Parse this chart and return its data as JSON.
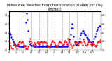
{
  "title": "Milwaukee Weather Evapotranspiration vs Rain per Day (Inches)",
  "title_fontsize": 3.5,
  "background_color": "#ffffff",
  "grid_color": "#888888",
  "et_color": "#0000ff",
  "rain_color": "#ff0000",
  "ylim": [
    0,
    0.45
  ],
  "n_points": 110,
  "et_values": [
    0.22,
    0.2,
    0.18,
    0.15,
    0.12,
    0.1,
    0.08,
    0.07,
    0.06,
    0.05,
    0.05,
    0.05,
    0.04,
    0.04,
    0.04,
    0.04,
    0.04,
    0.04,
    0.04,
    0.05,
    0.32,
    0.42,
    0.35,
    0.22,
    0.1,
    0.07,
    0.06,
    0.05,
    0.05,
    0.05,
    0.04,
    0.04,
    0.04,
    0.04,
    0.04,
    0.04,
    0.04,
    0.04,
    0.04,
    0.04,
    0.04,
    0.04,
    0.04,
    0.04,
    0.04,
    0.04,
    0.04,
    0.04,
    0.04,
    0.04,
    0.04,
    0.04,
    0.04,
    0.04,
    0.04,
    0.04,
    0.04,
    0.04,
    0.04,
    0.04,
    0.04,
    0.04,
    0.04,
    0.04,
    0.04,
    0.04,
    0.04,
    0.04,
    0.04,
    0.04,
    0.05,
    0.08,
    0.12,
    0.18,
    0.25,
    0.3,
    0.25,
    0.16,
    0.1,
    0.07,
    0.06,
    0.07,
    0.08,
    0.1,
    0.13,
    0.17,
    0.2,
    0.22,
    0.22,
    0.2,
    0.18,
    0.17,
    0.15,
    0.14,
    0.12,
    0.11,
    0.1,
    0.09,
    0.08,
    0.07,
    0.1,
    0.13,
    0.16,
    0.19,
    0.22,
    0.24,
    0.26,
    0.28,
    0.28,
    0.27
  ],
  "rain_values": [
    0.05,
    0.08,
    0.05,
    0.03,
    0.02,
    0.06,
    0.08,
    0.06,
    0.04,
    0.02,
    0.05,
    0.07,
    0.09,
    0.1,
    0.08,
    0.09,
    0.1,
    0.08,
    0.06,
    0.04,
    0.02,
    0.02,
    0.02,
    0.04,
    0.1,
    0.13,
    0.11,
    0.08,
    0.06,
    0.04,
    0.08,
    0.07,
    0.06,
    0.08,
    0.1,
    0.08,
    0.07,
    0.09,
    0.1,
    0.08,
    0.06,
    0.08,
    0.1,
    0.09,
    0.08,
    0.06,
    0.05,
    0.04,
    0.03,
    0.05,
    0.07,
    0.09,
    0.11,
    0.09,
    0.08,
    0.06,
    0.05,
    0.04,
    0.06,
    0.08,
    0.1,
    0.09,
    0.08,
    0.06,
    0.05,
    0.07,
    0.09,
    0.11,
    0.09,
    0.07,
    0.13,
    0.11,
    0.09,
    0.07,
    0.05,
    0.03,
    0.05,
    0.06,
    0.08,
    0.1,
    0.09,
    0.07,
    0.06,
    0.08,
    0.09,
    0.1,
    0.08,
    0.06,
    0.12,
    0.1,
    0.08,
    0.06,
    0.05,
    0.07,
    0.09,
    0.11,
    0.09,
    0.07,
    0.05,
    0.07,
    0.09,
    0.07,
    0.05,
    0.04,
    0.06,
    0.08,
    0.1,
    0.11,
    0.09,
    0.12
  ],
  "x_tick_positions": [
    0,
    9,
    18,
    27,
    36,
    45,
    54,
    63,
    72,
    81,
    90,
    99
  ],
  "x_tick_labels": [
    "1/1",
    "2/1",
    "3/1",
    "4/1",
    "5/1",
    "6/1",
    "7/1",
    "8/1",
    "9/1",
    "10/1",
    "11/1",
    "12/1"
  ],
  "vline_positions": [
    9,
    18,
    27,
    36,
    45,
    54,
    63,
    72,
    81,
    90,
    99
  ]
}
